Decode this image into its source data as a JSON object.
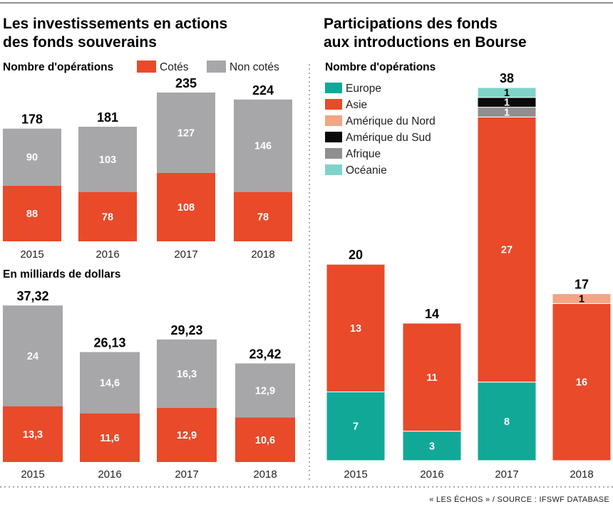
{
  "colors": {
    "cotes": "#e84a2a",
    "non_cotes": "#a7a7a9",
    "europe": "#12a898",
    "asie": "#e84a2a",
    "amerique_nord": "#f3a584",
    "amerique_sud": "#0a0a0a",
    "afrique": "#8f8f91",
    "oceanie": "#7fd3c9"
  },
  "left": {
    "title_line1": "Les investissements en actions",
    "title_line2": "des fonds souverains",
    "legend": {
      "cotes": "Cotés",
      "non_cotes": "Non cotés"
    }
  },
  "right": {
    "title_line1": "Participations des fonds",
    "title_line2": "aux introductions en Bourse"
  },
  "source": "« LES ÉCHOS » / SOURCE : IFSWF DATABASE",
  "chart_data": [
    {
      "type": "bar",
      "stacked": true,
      "subtitle": "Nombre d'opérations",
      "categories": [
        "2015",
        "2016",
        "2017",
        "2018"
      ],
      "series": [
        {
          "name": "Cotés",
          "values": [
            88,
            78,
            108,
            78
          ],
          "labels": [
            "88",
            "78",
            "108",
            "78"
          ]
        },
        {
          "name": "Non cotés",
          "values": [
            90,
            103,
            127,
            146
          ],
          "labels": [
            "90",
            "103",
            "127",
            "146"
          ]
        }
      ],
      "totals": [
        "178",
        "181",
        "235",
        "224"
      ],
      "ylim": [
        0,
        235
      ]
    },
    {
      "type": "bar",
      "stacked": true,
      "subtitle": "En milliards de dollars",
      "categories": [
        "2015",
        "2016",
        "2017",
        "2018"
      ],
      "series": [
        {
          "name": "Cotés",
          "values": [
            13.3,
            11.6,
            12.9,
            10.6
          ],
          "labels": [
            "13,3",
            "11,6",
            "12,9",
            "10,6"
          ]
        },
        {
          "name": "Non cotés",
          "values": [
            24,
            14.6,
            16.3,
            12.9
          ],
          "labels": [
            "24",
            "14,6",
            "16,3",
            "12,9"
          ]
        }
      ],
      "totals": [
        "37,32",
        "26,13",
        "29,23",
        "23,42"
      ],
      "ylim": [
        0,
        37.32
      ]
    },
    {
      "type": "bar",
      "stacked": true,
      "subtitle": "Nombre d'opérations",
      "categories": [
        "2015",
        "2016",
        "2017",
        "2018"
      ],
      "series": [
        {
          "name": "Europe",
          "values": [
            7,
            3,
            8,
            0
          ]
        },
        {
          "name": "Asie",
          "values": [
            13,
            11,
            27,
            16
          ]
        },
        {
          "name": "Amérique du Nord",
          "values": [
            0,
            0,
            0,
            1
          ]
        },
        {
          "name": "Afrique",
          "values": [
            0,
            0,
            1,
            0
          ]
        },
        {
          "name": "Amérique du Sud",
          "values": [
            0,
            0,
            1,
            0
          ]
        },
        {
          "name": "Océanie",
          "values": [
            0,
            0,
            1,
            0
          ]
        }
      ],
      "legend_order": [
        "Europe",
        "Asie",
        "Amérique du Nord",
        "Amérique du Sud",
        "Afrique",
        "Océanie"
      ],
      "totals": [
        "20",
        "14",
        "38",
        "17"
      ],
      "ylim": [
        0,
        38
      ]
    }
  ]
}
